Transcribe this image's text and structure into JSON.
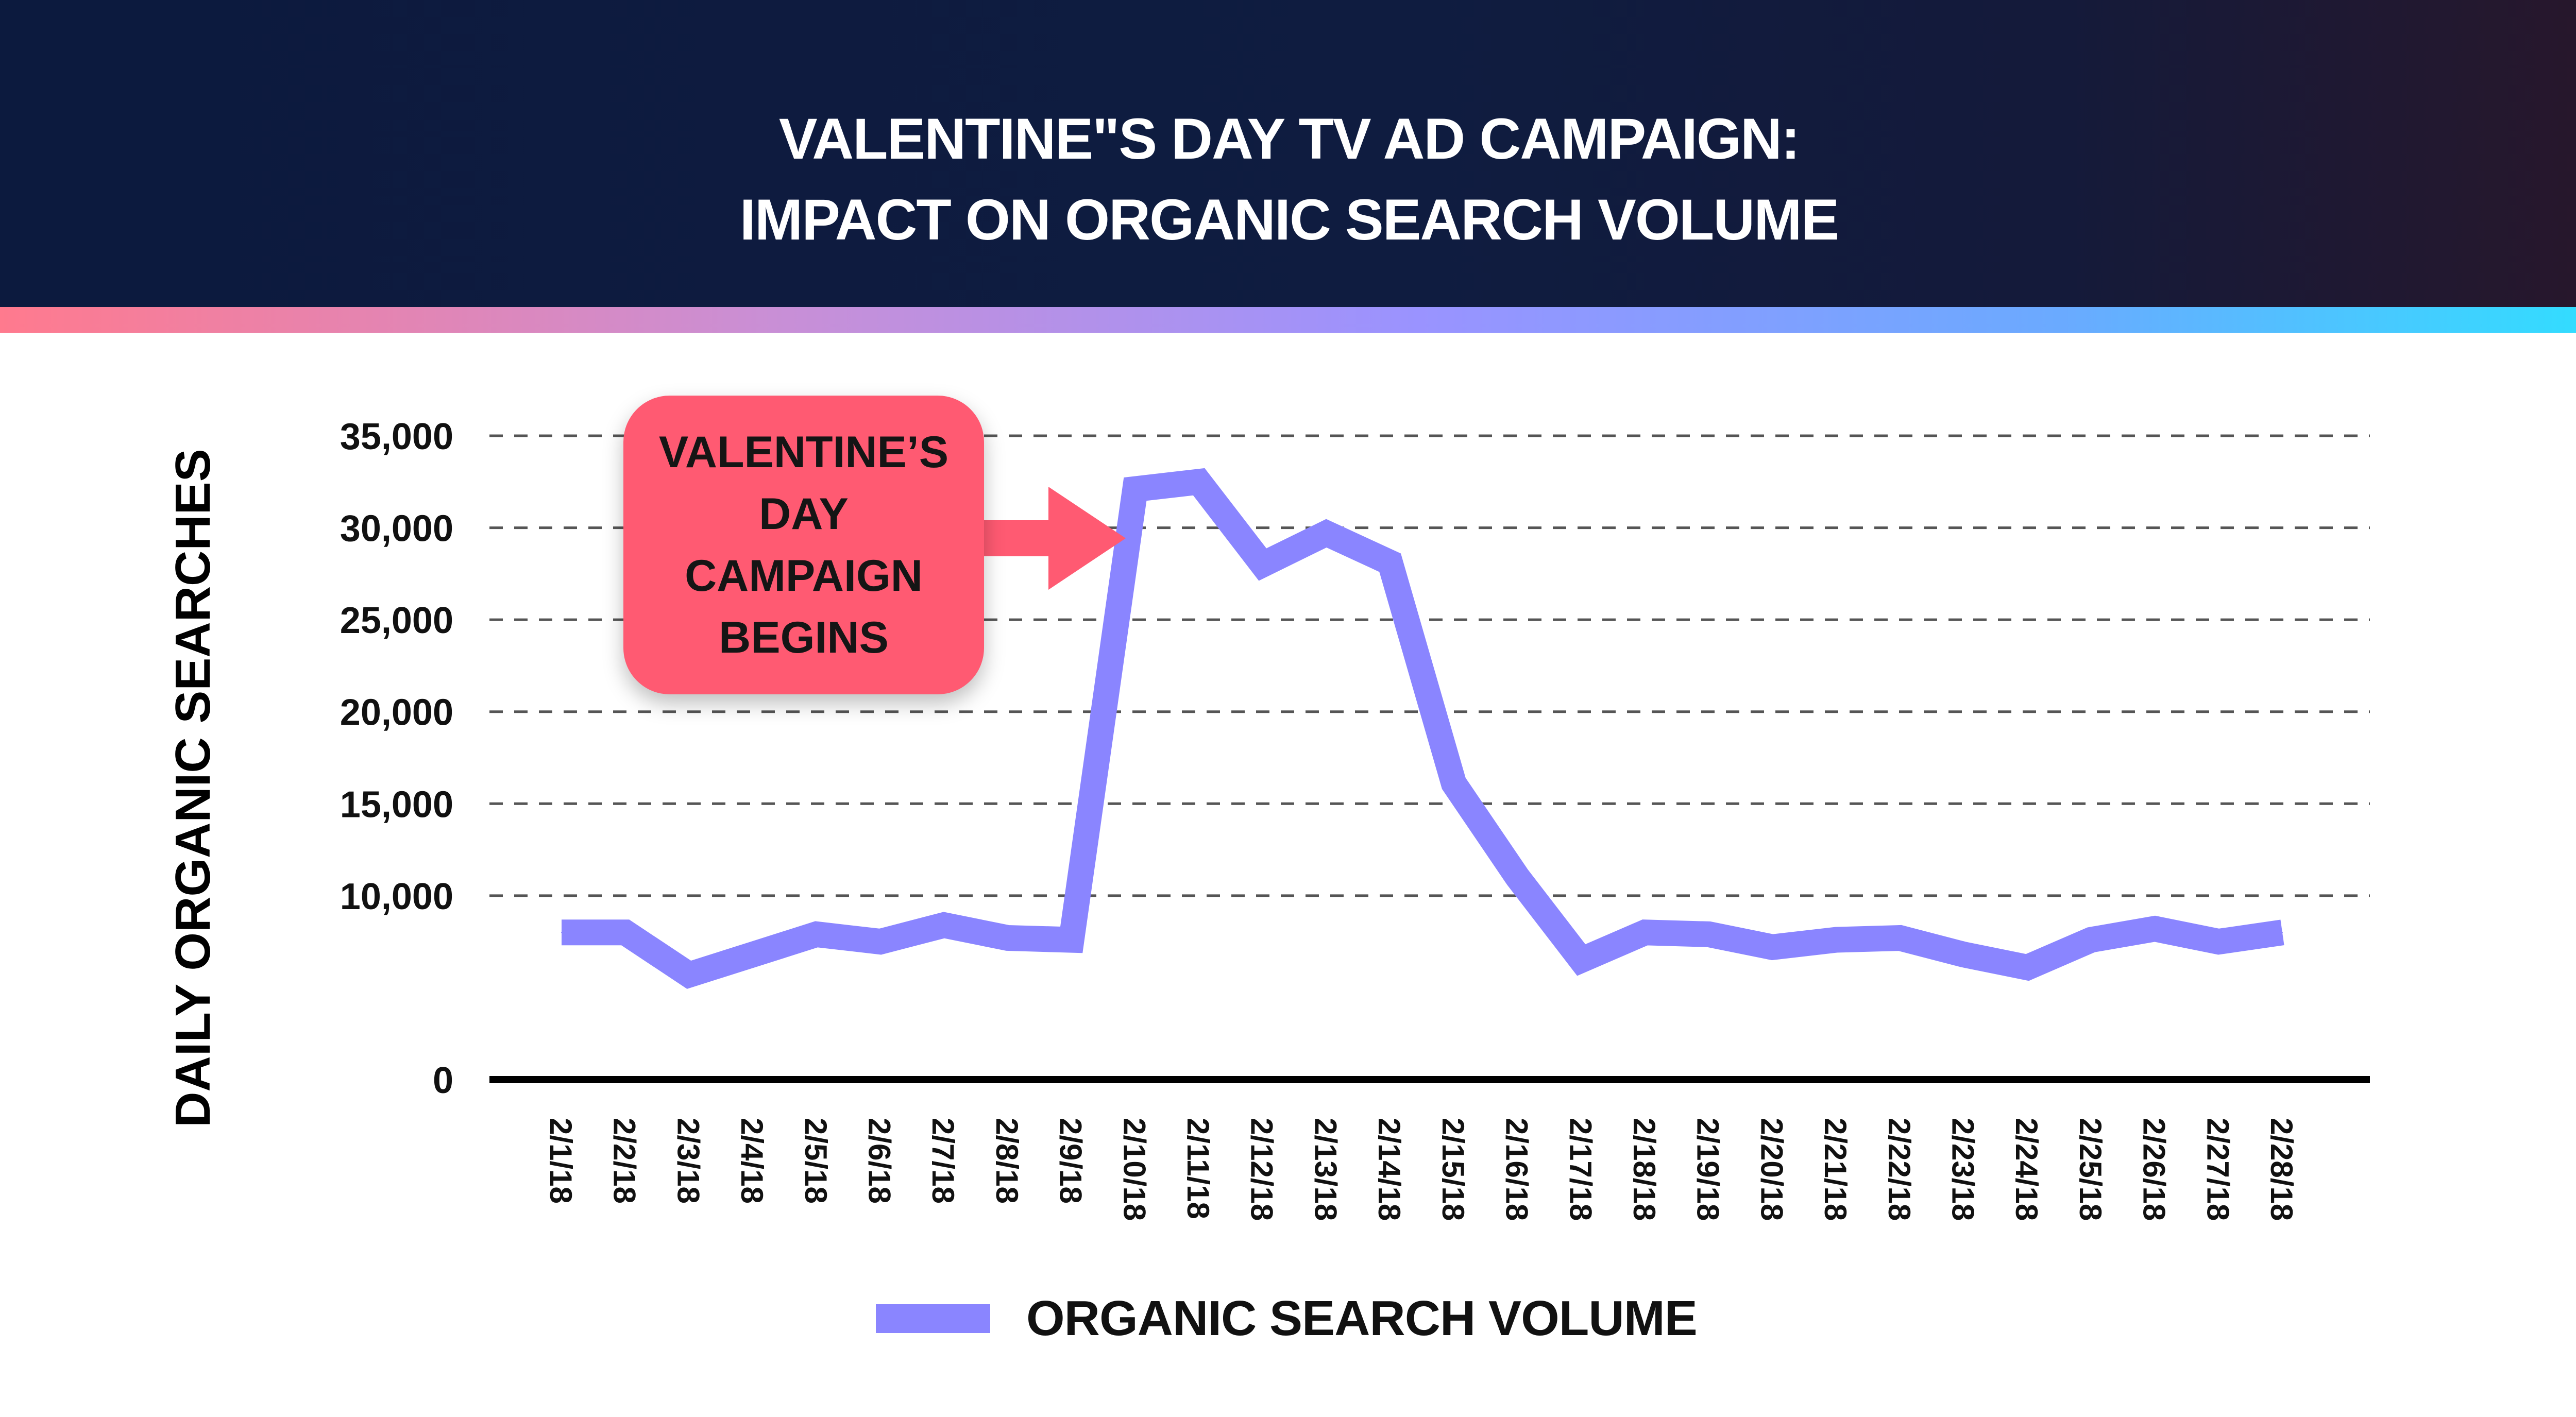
{
  "chart_data": {
    "type": "line",
    "title": "VALENTINE\"S DAY TV AD CAMPAIGN:\nIMPACT ON ORGANIC SEARCH VOLUME",
    "title_lines": [
      "VALENTINE\"S DAY TV AD CAMPAIGN:",
      "IMPACT ON ORGANIC SEARCH VOLUME"
    ],
    "ylabel": "DAILY ORGANIC SEARCHES",
    "xlabel": "",
    "ylim": [
      0,
      35000
    ],
    "y_ticks": [
      0,
      10000,
      15000,
      20000,
      25000,
      30000,
      35000
    ],
    "y_tick_labels": [
      "0",
      "10,000",
      "15,000",
      "20,000",
      "25,000",
      "30,000",
      "35,000"
    ],
    "grid": "horizontal dashed",
    "legend_position": "bottom-center",
    "categories": [
      "2/1/18",
      "2/2/18",
      "2/3/18",
      "2/4/18",
      "2/5/18",
      "2/6/18",
      "2/7/18",
      "2/8/18",
      "2/9/18",
      "2/10/18",
      "2/11/18",
      "2/12/18",
      "2/13/18",
      "2/14/18",
      "2/15/18",
      "2/16/18",
      "2/17/18",
      "2/18/18",
      "2/19/18",
      "2/20/18",
      "2/21/18",
      "2/22/18",
      "2/23/18",
      "2/24/18",
      "2/25/18",
      "2/26/18",
      "2/27/18",
      "2/28/18"
    ],
    "series": [
      {
        "name": "ORGANIC SEARCH VOLUME",
        "color": "#8a85ff",
        "values": [
          8000,
          8000,
          5700,
          6800,
          7900,
          7500,
          8400,
          7700,
          7600,
          32100,
          32500,
          28000,
          29700,
          28100,
          16100,
          11000,
          6500,
          8000,
          7900,
          7200,
          7600,
          7700,
          6800,
          6100,
          7600,
          8200,
          7500,
          8000
        ]
      }
    ],
    "annotations": [
      {
        "text": "VALENTINE’S\nDAY\nCAMPAIGN\nBEGINS",
        "points_to": "2/10/18",
        "color": "#ff5a72"
      }
    ]
  }
}
